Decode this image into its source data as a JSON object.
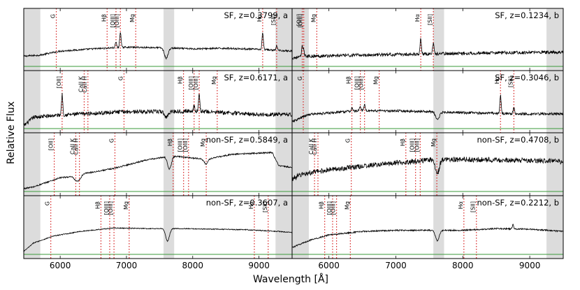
{
  "chart_data": {
    "type": "line",
    "xlabel": "Wavelength [Å]",
    "ylabel": "Relative Flux",
    "xlim": [
      5450,
      9500
    ],
    "ylim": [
      0,
      1
    ],
    "xticks_left": [
      6000,
      7000,
      8000,
      9000
    ],
    "xticks_right": [
      6000,
      7000,
      8000,
      9000
    ],
    "tick_labels_left": [
      "6000",
      "7000",
      "8000",
      "9000"
    ],
    "tick_labels_right": [
      "6000",
      "7000",
      "8000",
      "9000"
    ],
    "shaded_bands_left": [
      [
        5450,
        5700
      ],
      [
        7560,
        7720
      ],
      [
        9250,
        9500
      ]
    ],
    "shaded_bands_right": [
      [
        5450,
        5700
      ],
      [
        7560,
        7720
      ],
      [
        9250,
        9500
      ]
    ],
    "panels": [
      {
        "label": "SF, z=0.3799, a",
        "col": 0,
        "row": 0,
        "redshift": 0.3799,
        "lines": [
          {
            "name": "G",
            "wave": 5941
          },
          {
            "name": "Hβ",
            "wave": 6708
          },
          {
            "name": "[OIII]",
            "wave": 6842
          },
          {
            "name": "[OIII]",
            "wave": 6908
          },
          {
            "name": "Mg",
            "wave": 7140
          },
          {
            "name": "Hα",
            "wave": 9056
          },
          {
            "name": "[SII]",
            "wave": 9267
          }
        ],
        "continuum": [
          [
            5450,
            0.18
          ],
          [
            5700,
            0.2
          ],
          [
            6000,
            0.27
          ],
          [
            6500,
            0.31
          ],
          [
            7000,
            0.34
          ],
          [
            7500,
            0.33
          ],
          [
            8000,
            0.31
          ],
          [
            8500,
            0.32
          ],
          [
            9000,
            0.3
          ],
          [
            9500,
            0.27
          ]
        ],
        "emission": [
          [
            6842,
            0.1
          ],
          [
            6908,
            0.28
          ],
          [
            9056,
            0.3
          ],
          [
            9267,
            0.08
          ]
        ],
        "absorption": [
          [
            7600,
            0.18
          ]
        ],
        "noise": 0.015
      },
      {
        "label": "SF, z=0.6171, a",
        "col": 0,
        "row": 1,
        "redshift": 0.6171,
        "lines": [
          {
            "name": "[OII]",
            "wave": 6029
          },
          {
            "name": "CaII K",
            "wave": 6362
          },
          {
            "name": "CaII H",
            "wave": 6418
          },
          {
            "name": "G",
            "wave": 6963
          },
          {
            "name": "Hβ",
            "wave": 7861
          },
          {
            "name": "[OIII]",
            "wave": 8021
          },
          {
            "name": "[OIII]",
            "wave": 8098
          },
          {
            "name": "Mg",
            "wave": 8370
          }
        ],
        "continuum": [
          [
            5450,
            0.05
          ],
          [
            5600,
            0.2
          ],
          [
            6000,
            0.24
          ],
          [
            6500,
            0.27
          ],
          [
            7000,
            0.3
          ],
          [
            7500,
            0.3
          ],
          [
            8000,
            0.31
          ],
          [
            8500,
            0.28
          ],
          [
            9000,
            0.25
          ],
          [
            9500,
            0.25
          ]
        ],
        "emission": [
          [
            6029,
            0.36
          ],
          [
            8021,
            0.1
          ],
          [
            8098,
            0.3
          ]
        ],
        "absorption": [
          [
            7600,
            0.1
          ]
        ],
        "noise": 0.035
      },
      {
        "label": "non-SF, z=0.5849, a",
        "col": 0,
        "row": 2,
        "redshift": 0.5849,
        "lines": [
          {
            "name": "[OII]",
            "wave": 5910
          },
          {
            "name": "CaII K",
            "wave": 6235
          },
          {
            "name": "CaII H",
            "wave": 6290
          },
          {
            "name": "G",
            "wave": 6826
          },
          {
            "name": "Hβ",
            "wave": 7705
          },
          {
            "name": "[OIII]",
            "wave": 7862
          },
          {
            "name": "[OIII]",
            "wave": 7937
          },
          {
            "name": "Mg",
            "wave": 8204
          }
        ],
        "continuum": [
          [
            5450,
            0.05
          ],
          [
            5600,
            0.08
          ],
          [
            6000,
            0.24
          ],
          [
            6200,
            0.26
          ],
          [
            6300,
            0.3
          ],
          [
            6800,
            0.4
          ],
          [
            7300,
            0.55
          ],
          [
            7700,
            0.62
          ],
          [
            8200,
            0.56
          ],
          [
            8600,
            0.65
          ],
          [
            9200,
            0.68
          ],
          [
            9300,
            0.45
          ],
          [
            9500,
            0.42
          ]
        ],
        "emission": [],
        "absorption": [
          [
            6240,
            0.08
          ],
          [
            6290,
            0.08
          ],
          [
            7650,
            0.22
          ],
          [
            8200,
            0.08
          ]
        ],
        "noise": 0.012
      },
      {
        "label": "non-SF, z=0.3607, a",
        "col": 0,
        "row": 3,
        "redshift": 0.3607,
        "lines": [
          {
            "name": "G",
            "wave": 5858
          },
          {
            "name": "Hβ",
            "wave": 6615
          },
          {
            "name": "[OIII]",
            "wave": 6747
          },
          {
            "name": "[OIII]",
            "wave": 6812
          },
          {
            "name": "Mg",
            "wave": 7041
          },
          {
            "name": "Hα",
            "wave": 8930
          },
          {
            "name": "[SII]",
            "wave": 9139
          }
        ],
        "continuum": [
          [
            5450,
            0.05
          ],
          [
            5600,
            0.2
          ],
          [
            5900,
            0.32
          ],
          [
            6300,
            0.4
          ],
          [
            6800,
            0.46
          ],
          [
            7300,
            0.45
          ],
          [
            7800,
            0.45
          ],
          [
            8300,
            0.44
          ],
          [
            8800,
            0.43
          ],
          [
            9300,
            0.4
          ],
          [
            9500,
            0.38
          ]
        ],
        "emission": [],
        "absorption": [
          [
            7620,
            0.22
          ]
        ],
        "noise": 0.008
      },
      {
        "label": "SF, z=0.1234, b",
        "col": 1,
        "row": 0,
        "redshift": 0.1234,
        "lines": [
          {
            "name": "[OII]",
            "wave": 5602
          },
          {
            "name": "[OIII]",
            "wave": 5624
          },
          {
            "name": "Mg",
            "wave": 5819
          },
          {
            "name": "Hα",
            "wave": 7372
          },
          {
            "name": "[SII]",
            "wave": 7560
          }
        ],
        "continuum": [
          [
            5450,
            0.15
          ],
          [
            5700,
            0.18
          ],
          [
            6500,
            0.2
          ],
          [
            7500,
            0.22
          ],
          [
            8500,
            0.24
          ],
          [
            9300,
            0.25
          ],
          [
            9500,
            0.25
          ]
        ],
        "emission": [
          [
            5602,
            0.18
          ],
          [
            5624,
            0.12
          ],
          [
            7372,
            0.28
          ],
          [
            7560,
            0.2
          ]
        ],
        "absorption": [],
        "noise": 0.028
      },
      {
        "label": "SF, z=0.3046, b",
        "col": 1,
        "row": 1,
        "redshift": 0.3046,
        "lines": [
          {
            "name": "G",
            "wave": 5617
          },
          {
            "name": "Hβ",
            "wave": 6343
          },
          {
            "name": "[OIII]",
            "wave": 6469
          },
          {
            "name": "[OIII]",
            "wave": 6532
          },
          {
            "name": "Mg",
            "wave": 6751
          },
          {
            "name": "Hα",
            "wave": 8563
          },
          {
            "name": "[SII]",
            "wave": 8763
          }
        ],
        "continuum": [
          [
            5450,
            0.12
          ],
          [
            5700,
            0.25
          ],
          [
            6500,
            0.32
          ],
          [
            7500,
            0.3
          ],
          [
            8000,
            0.28
          ],
          [
            9000,
            0.26
          ],
          [
            9500,
            0.26
          ]
        ],
        "emission": [
          [
            6343,
            0.06
          ],
          [
            6469,
            0.08
          ],
          [
            6532,
            0.1
          ],
          [
            8563,
            0.32
          ],
          [
            8763,
            0.1
          ]
        ],
        "absorption": [
          [
            7620,
            0.14
          ]
        ],
        "noise": 0.022
      },
      {
        "label": "non-SF, z=0.4708, b",
        "col": 1,
        "row": 2,
        "redshift": 0.4708,
        "lines": [
          {
            "name": "CaII K",
            "wave": 5785
          },
          {
            "name": "CaII H",
            "wave": 5836
          },
          {
            "name": "G",
            "wave": 6334
          },
          {
            "name": "Hβ",
            "wave": 7149
          },
          {
            "name": "[OIII]",
            "wave": 7294
          },
          {
            "name": "[OIII]",
            "wave": 7364
          },
          {
            "name": "Mg",
            "wave": 7612
          }
        ],
        "continuum": [
          [
            5450,
            0.22
          ],
          [
            5600,
            0.3
          ],
          [
            6000,
            0.38
          ],
          [
            6500,
            0.44
          ],
          [
            7000,
            0.5
          ],
          [
            7500,
            0.55
          ],
          [
            8000,
            0.56
          ],
          [
            8500,
            0.55
          ],
          [
            9000,
            0.54
          ],
          [
            9500,
            0.52
          ]
        ],
        "emission": [],
        "absorption": [
          [
            7620,
            0.24
          ]
        ],
        "noise": 0.045
      },
      {
        "label": "non-SF, z=0.2212, b",
        "col": 1,
        "row": 3,
        "redshift": 0.2212,
        "lines": [
          {
            "name": "Hβ",
            "wave": 5937
          },
          {
            "name": "[OIII]",
            "wave": 6055
          },
          {
            "name": "[OIII]",
            "wave": 6114
          },
          {
            "name": "Mg",
            "wave": 6320
          },
          {
            "name": "Hα",
            "wave": 8016
          },
          {
            "name": "[SII]",
            "wave": 8203
          }
        ],
        "continuum": [
          [
            5450,
            0.12
          ],
          [
            5700,
            0.24
          ],
          [
            6000,
            0.34
          ],
          [
            6500,
            0.4
          ],
          [
            7000,
            0.42
          ],
          [
            7500,
            0.42
          ],
          [
            8000,
            0.42
          ],
          [
            8500,
            0.45
          ],
          [
            9000,
            0.44
          ],
          [
            9500,
            0.4
          ]
        ],
        "emission": [
          [
            8750,
            0.08
          ]
        ],
        "absorption": [
          [
            7620,
            0.18
          ]
        ],
        "noise": 0.012
      }
    ]
  }
}
